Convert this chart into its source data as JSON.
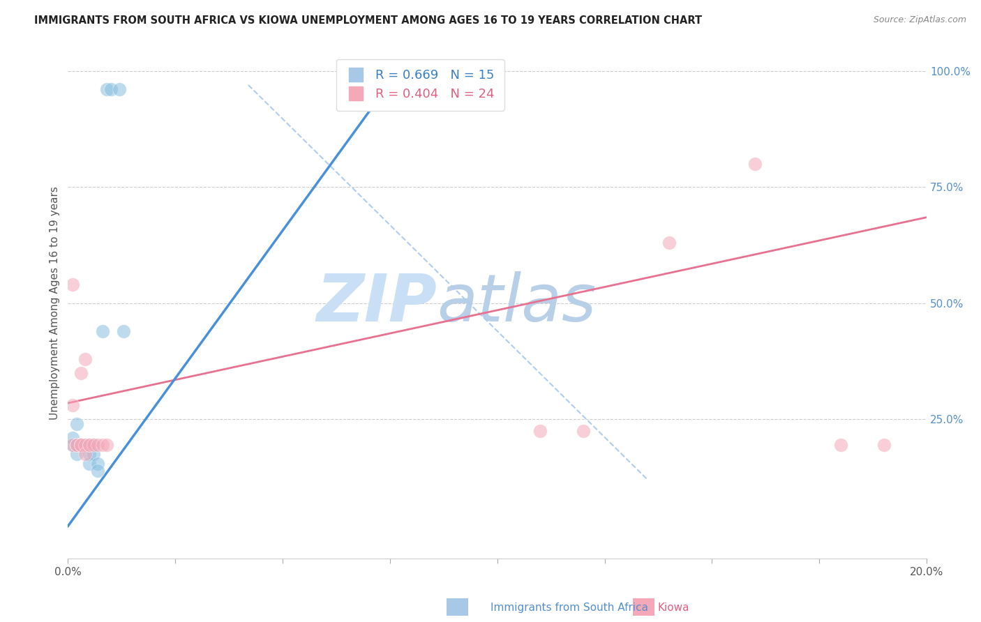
{
  "title": "IMMIGRANTS FROM SOUTH AFRICA VS KIOWA UNEMPLOYMENT AMONG AGES 16 TO 19 YEARS CORRELATION CHART",
  "source": "Source: ZipAtlas.com",
  "ylabel": "Unemployment Among Ages 16 to 19 years",
  "yticks": [
    0.0,
    0.25,
    0.5,
    0.75,
    1.0
  ],
  "ytick_labels": [
    "",
    "25.0%",
    "50.0%",
    "75.0%",
    "100.0%"
  ],
  "xmin": 0.0,
  "xmax": 0.2,
  "ymin": -0.05,
  "ymax": 1.05,
  "blue_scatter": [
    [
      0.001,
      0.195
    ],
    [
      0.001,
      0.21
    ],
    [
      0.002,
      0.195
    ],
    [
      0.002,
      0.24
    ],
    [
      0.002,
      0.175
    ],
    [
      0.002,
      0.195
    ],
    [
      0.003,
      0.195
    ],
    [
      0.003,
      0.195
    ],
    [
      0.004,
      0.195
    ],
    [
      0.005,
      0.175
    ],
    [
      0.005,
      0.155
    ],
    [
      0.006,
      0.195
    ],
    [
      0.006,
      0.175
    ],
    [
      0.007,
      0.155
    ],
    [
      0.007,
      0.14
    ],
    [
      0.008,
      0.44
    ],
    [
      0.009,
      0.96
    ],
    [
      0.01,
      0.96
    ],
    [
      0.012,
      0.96
    ],
    [
      0.013,
      0.44
    ]
  ],
  "pink_scatter": [
    [
      0.001,
      0.195
    ],
    [
      0.001,
      0.54
    ],
    [
      0.001,
      0.28
    ],
    [
      0.002,
      0.195
    ],
    [
      0.002,
      0.195
    ],
    [
      0.003,
      0.195
    ],
    [
      0.003,
      0.195
    ],
    [
      0.003,
      0.35
    ],
    [
      0.003,
      0.195
    ],
    [
      0.004,
      0.195
    ],
    [
      0.004,
      0.38
    ],
    [
      0.004,
      0.175
    ],
    [
      0.005,
      0.195
    ],
    [
      0.005,
      0.195
    ],
    [
      0.006,
      0.195
    ],
    [
      0.007,
      0.195
    ],
    [
      0.008,
      0.195
    ],
    [
      0.009,
      0.195
    ],
    [
      0.11,
      0.225
    ],
    [
      0.12,
      0.225
    ],
    [
      0.14,
      0.63
    ],
    [
      0.16,
      0.8
    ],
    [
      0.18,
      0.195
    ],
    [
      0.19,
      0.195
    ]
  ],
  "blue_line_x": [
    0.0,
    0.077
  ],
  "blue_line_y": [
    0.02,
    1.0
  ],
  "pink_line_x": [
    0.0,
    0.2
  ],
  "pink_line_y": [
    0.285,
    0.685
  ],
  "diag_line_x": [
    0.042,
    0.135
  ],
  "diag_line_y": [
    0.97,
    0.12
  ],
  "blue_color": "#89bfe0",
  "pink_color": "#f4a8b8",
  "blue_line_color": "#4a90d9",
  "pink_line_color": "#e87090",
  "diag_color": "#b0ccee",
  "watermark_zip": "ZIP",
  "watermark_atlas": "atlas",
  "watermark_color_zip": "#c8dff5",
  "watermark_color_atlas": "#b8cfe8"
}
